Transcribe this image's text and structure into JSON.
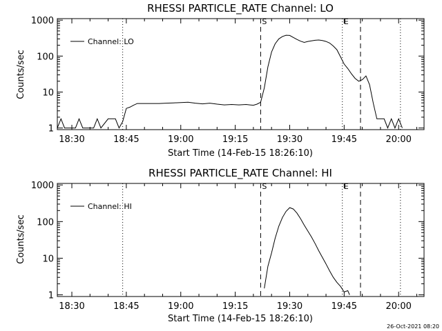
{
  "timestamp": "26-Oct-2021 08:20",
  "chart_data": [
    {
      "type": "line",
      "title": "RHESSI PARTICLE_RATE Channel: LO",
      "xlabel": "Start Time (14-Feb-15 18:26:10)",
      "ylabel": "Counts/sec",
      "yscale": "log",
      "xlim": [
        "18:26",
        "20:07"
      ],
      "ylim": [
        0.9,
        1100
      ],
      "x_ticks": [
        "18:30",
        "18:45",
        "19:00",
        "19:15",
        "19:30",
        "19:45",
        "20:00"
      ],
      "y_ticks": [
        "1",
        "10",
        "100",
        "1000"
      ],
      "legend": "top-left",
      "markers": [
        {
          "label": "S",
          "time": "19:22",
          "style": "dashed"
        },
        {
          "label": "E",
          "time": "19:44.5",
          "style": "dotted"
        },
        {
          "label": "",
          "time": "19:49.5",
          "style": "dashed"
        },
        {
          "label": "",
          "time": "18:44",
          "style": "dotted"
        },
        {
          "label": "",
          "time": "20:00.5",
          "style": "dotted"
        }
      ],
      "series": [
        {
          "name": "Channel: LO",
          "points": [
            [
              "18:26",
              1
            ],
            [
              "18:27",
              1.8
            ],
            [
              "18:28",
              1
            ],
            [
              "18:31",
              1
            ],
            [
              "18:32",
              1.8
            ],
            [
              "18:33",
              1
            ],
            [
              "18:36",
              1
            ],
            [
              "18:37",
              1.8
            ],
            [
              "18:38",
              1
            ],
            [
              "18:40",
              1.8
            ],
            [
              "18:42",
              1.8
            ],
            [
              "18:43",
              1
            ],
            [
              "18:44",
              1.5
            ],
            [
              "18:45",
              3.5
            ],
            [
              "18:46",
              3.8
            ],
            [
              "18:47",
              4.3
            ],
            [
              "18:48",
              4.8
            ],
            [
              "18:50",
              4.8
            ],
            [
              "18:52",
              4.8
            ],
            [
              "18:54",
              4.8
            ],
            [
              "18:56",
              4.9
            ],
            [
              "18:58",
              5.0
            ],
            [
              "19:00",
              5.1
            ],
            [
              "19:02",
              5.2
            ],
            [
              "19:04",
              4.9
            ],
            [
              "19:06",
              4.7
            ],
            [
              "19:08",
              4.9
            ],
            [
              "19:10",
              4.6
            ],
            [
              "19:12",
              4.4
            ],
            [
              "19:14",
              4.5
            ],
            [
              "19:16",
              4.4
            ],
            [
              "19:18",
              4.5
            ],
            [
              "19:19",
              4.4
            ],
            [
              "19:20",
              4.3
            ],
            [
              "19:21",
              4.6
            ],
            [
              "19:22",
              5.2
            ],
            [
              "19:23",
              13
            ],
            [
              "19:24",
              50
            ],
            [
              "19:25",
              130
            ],
            [
              "19:26",
              220
            ],
            [
              "19:27",
              300
            ],
            [
              "19:28",
              350
            ],
            [
              "19:29",
              380
            ],
            [
              "19:30",
              375
            ],
            [
              "19:31",
              330
            ],
            [
              "19:32",
              290
            ],
            [
              "19:33",
              260
            ],
            [
              "19:34",
              240
            ],
            [
              "19:35",
              255
            ],
            [
              "19:36",
              265
            ],
            [
              "19:37",
              275
            ],
            [
              "19:38",
              280
            ],
            [
              "19:39",
              270
            ],
            [
              "19:40",
              255
            ],
            [
              "19:41",
              230
            ],
            [
              "19:42",
              190
            ],
            [
              "19:43",
              150
            ],
            [
              "19:44",
              95
            ],
            [
              "19:45",
              60
            ],
            [
              "19:46",
              45
            ],
            [
              "19:47",
              32
            ],
            [
              "19:48",
              24
            ],
            [
              "19:49",
              20
            ],
            [
              "19:50",
              22
            ],
            [
              "19:51",
              28
            ],
            [
              "19:52",
              16
            ],
            [
              "19:53",
              5
            ],
            [
              "19:54",
              1.8
            ],
            [
              "19:55",
              1.8
            ],
            [
              "19:56",
              1.8
            ],
            [
              "19:57",
              1
            ],
            [
              "19:58",
              1.8
            ],
            [
              "19:59",
              1
            ],
            [
              "20:00",
              1.8
            ],
            [
              "20:01",
              1
            ]
          ]
        }
      ]
    },
    {
      "type": "line",
      "title": "RHESSI PARTICLE_RATE Channel: HI",
      "xlabel": "Start Time (14-Feb-15 18:26:10)",
      "ylabel": "Counts/sec",
      "yscale": "log",
      "xlim": [
        "18:26",
        "20:07"
      ],
      "ylim": [
        0.9,
        1100
      ],
      "x_ticks": [
        "18:30",
        "18:45",
        "19:00",
        "19:15",
        "19:30",
        "19:45",
        "20:00"
      ],
      "y_ticks": [
        "1",
        "10",
        "100",
        "1000"
      ],
      "legend": "top-left",
      "markers": [
        {
          "label": "S",
          "time": "19:22",
          "style": "dashed"
        },
        {
          "label": "E",
          "time": "19:44.5",
          "style": "dotted"
        },
        {
          "label": "",
          "time": "19:49.5",
          "style": "dashed"
        },
        {
          "label": "",
          "time": "18:44",
          "style": "dotted"
        },
        {
          "label": "",
          "time": "20:00.5",
          "style": "dotted"
        }
      ],
      "series": [
        {
          "name": "Channel: HI",
          "points": [
            [
              "19:23",
              1.5
            ],
            [
              "19:23.5",
              3
            ],
            [
              "19:24",
              6
            ],
            [
              "19:25",
              14
            ],
            [
              "19:26",
              35
            ],
            [
              "19:27",
              75
            ],
            [
              "19:28",
              130
            ],
            [
              "19:29",
              190
            ],
            [
              "19:30",
              240
            ],
            [
              "19:31",
              220
            ],
            [
              "19:32",
              170
            ],
            [
              "19:33",
              120
            ],
            [
              "19:34",
              80
            ],
            [
              "19:35",
              55
            ],
            [
              "19:36",
              38
            ],
            [
              "19:37",
              25
            ],
            [
              "19:38",
              16
            ],
            [
              "19:39",
              10.5
            ],
            [
              "19:40",
              7
            ],
            [
              "19:41",
              4.5
            ],
            [
              "19:42",
              3
            ],
            [
              "19:43",
              2.2
            ],
            [
              "19:44",
              1.7
            ],
            [
              "19:45",
              1.2
            ],
            [
              "19:46",
              1.3
            ],
            [
              "19:46.5",
              1
            ]
          ]
        }
      ]
    }
  ]
}
